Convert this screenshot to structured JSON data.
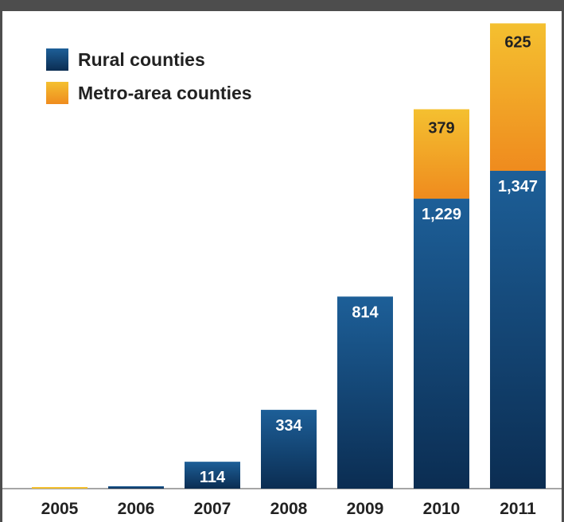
{
  "chart_data": {
    "type": "bar",
    "stacked": true,
    "categories": [
      "2005",
      "2006",
      "2007",
      "2008",
      "2009",
      "2010",
      "2011"
    ],
    "series": [
      {
        "name": "Rural counties",
        "values": [
          0,
          10,
          114,
          334,
          814,
          1229,
          1347
        ],
        "labels": [
          "",
          "",
          "114",
          "334",
          "814",
          "1,229",
          "1,347"
        ]
      },
      {
        "name": "Metro-area counties",
        "values": [
          0,
          0,
          0,
          0,
          0,
          379,
          625
        ],
        "labels": [
          "",
          "",
          "",
          "",
          "",
          "379",
          "625"
        ]
      }
    ],
    "legend": "top-left",
    "grid": false,
    "ylim": [
      0,
      2000
    ]
  },
  "colors": {
    "rural_top": "#1d5f98",
    "rural_bottom": "#0b2d52",
    "metro_top": "#f4c030",
    "metro_bottom": "#ef8b1e",
    "label": "#ffffff",
    "metro_label": "#222222",
    "axis_text": "#222222",
    "frame": "#4d4d4d"
  }
}
